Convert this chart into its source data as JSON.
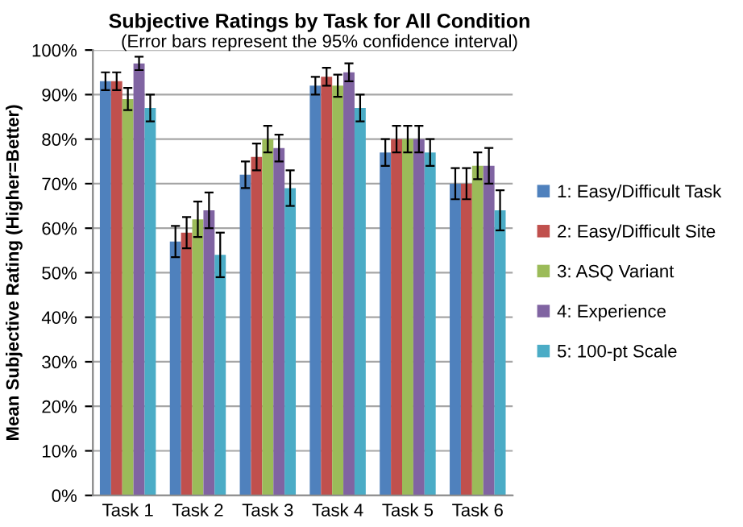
{
  "chart_data": {
    "type": "bar",
    "title": "Subjective Ratings by Task for All Condition",
    "subtitle": "(Error bars represent the 95% confidence interval)",
    "ylabel": "Mean Subjective Rating (Higher=Better)",
    "categories": [
      "Task 1",
      "Task 2",
      "Task 3",
      "Task 4",
      "Task 5",
      "Task 6"
    ],
    "series": [
      {
        "name": "1: Easy/Difficult Task",
        "color": "#4f81bd",
        "values": [
          93,
          57,
          72,
          92,
          77,
          70
        ],
        "errors": [
          2,
          3.5,
          3,
          2,
          3,
          3.5
        ]
      },
      {
        "name": "2: Easy/Difficult Site",
        "color": "#c0504d",
        "values": [
          93,
          59,
          76,
          94,
          80,
          70
        ],
        "errors": [
          2,
          3.5,
          3,
          2,
          3,
          3.5
        ]
      },
      {
        "name": "3: ASQ Variant",
        "color": "#9bbb59",
        "values": [
          89,
          62,
          80,
          92,
          80,
          74
        ],
        "errors": [
          2.5,
          4,
          3,
          2.5,
          3,
          3
        ]
      },
      {
        "name": "4: Experience",
        "color": "#8064a2",
        "values": [
          97,
          64,
          78,
          95,
          80,
          74
        ],
        "errors": [
          1.5,
          4,
          3,
          2,
          3,
          4
        ]
      },
      {
        "name": "5: 100-pt Scale",
        "color": "#4bacc6",
        "values": [
          87,
          54,
          69,
          87,
          77,
          64
        ],
        "errors": [
          3,
          5,
          4,
          3,
          3,
          4.5
        ]
      }
    ],
    "ylim": [
      0,
      100
    ],
    "yticks": [
      {
        "value": 0,
        "label": "0%"
      },
      {
        "value": 10,
        "label": "10%"
      },
      {
        "value": 20,
        "label": "20%"
      },
      {
        "value": 30,
        "label": "30%"
      },
      {
        "value": 40,
        "label": "40%"
      },
      {
        "value": 50,
        "label": "50%"
      },
      {
        "value": 60,
        "label": "60%"
      },
      {
        "value": 70,
        "label": "70%"
      },
      {
        "value": 80,
        "label": "80%"
      },
      {
        "value": 90,
        "label": "90%"
      },
      {
        "value": 100,
        "label": "100%"
      }
    ],
    "grid": "y",
    "legend": "right"
  }
}
